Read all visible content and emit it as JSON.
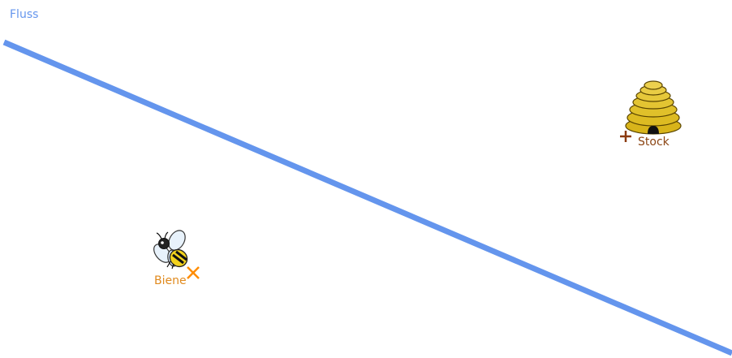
{
  "river": {
    "label": "Fluss",
    "color": "#6495ED"
  },
  "hive": {
    "label": "Stock",
    "label_color": "#8B4513",
    "marker": "plus-marker",
    "icon": "beehive-icon",
    "icon_color": "#DAA520"
  },
  "bee": {
    "label": "Biene",
    "label_color": "#E08A1E",
    "marker": "cross-marker",
    "marker_color": "#FF8C00",
    "icon": "bee-icon"
  }
}
